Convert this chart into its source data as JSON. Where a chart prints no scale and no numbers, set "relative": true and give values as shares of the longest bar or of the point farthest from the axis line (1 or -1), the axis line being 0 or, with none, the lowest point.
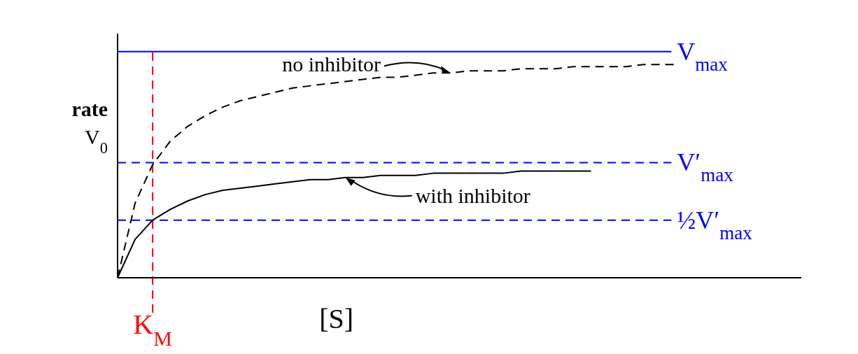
{
  "chart_data": {
    "type": "line",
    "relative": true,
    "ylabel": "rate V$_{0}$",
    "xlabel": "[S]",
    "categories": [
      null,
      null,
      null,
      null,
      null,
      null,
      null,
      null,
      null,
      null,
      null,
      null,
      null,
      null,
      null,
      null,
      null,
      null,
      null,
      null,
      null,
      null,
      null,
      null,
      null,
      null,
      null,
      null,
      null,
      null,
      null,
      null,
      null,
      null,
      null,
      null,
      null,
      null,
      null,
      null
    ],
    "series": [
      {
        "color": "#000000",
        "line_style": "dashed",
        "values": [
          0,
          0.35,
          0.53,
          0.64,
          0.71,
          0.76,
          0.8,
          0.83,
          0.85,
          0.87,
          0.89,
          0.9,
          0.91,
          0.92,
          0.93,
          0.94,
          0.94,
          0.95,
          0.96,
          0.96,
          0.97,
          0.97,
          0.97,
          0.98,
          0.98,
          0.98,
          0.99,
          0.99,
          0.99,
          0.99,
          1.0,
          1.0,
          1.0,
          null,
          null,
          null,
          null,
          null,
          null,
          null
        ]
      },
      {
        "color": "#000000",
        "line_style": "solid",
        "values": [
          0,
          0.18,
          0.27,
          0.32,
          0.36,
          0.39,
          0.41,
          0.42,
          0.43,
          0.44,
          0.45,
          0.46,
          0.46,
          0.47,
          0.47,
          0.48,
          0.48,
          0.48,
          0.49,
          0.49,
          0.49,
          0.49,
          0.49,
          0.5,
          0.5,
          0.5,
          0.5,
          0.5,
          null,
          null,
          null,
          null,
          null,
          null,
          null,
          null,
          null,
          null,
          null,
          null
        ]
      }
    ],
    "ref_lines": [
      {
        "axis": "y",
        "value": 1.06,
        "label": "V$_{max}$",
        "color": "#0000ff",
        "line_style": "solid"
      },
      {
        "axis": "y",
        "value": 0.54,
        "label": "V′$_{max}$",
        "color": "#0000ff",
        "line_style": "dashed"
      },
      {
        "axis": "y",
        "value": 0.27,
        "label": "½V′$_{max}$",
        "color": "#0000ff",
        "line_style": "dashed"
      },
      {
        "axis": "x",
        "label": "K$_{M}$",
        "color": "#ff0000",
        "line_style": "dashed"
      }
    ],
    "annotations": [
      "no inhibitor",
      "with inhibitor"
    ]
  }
}
